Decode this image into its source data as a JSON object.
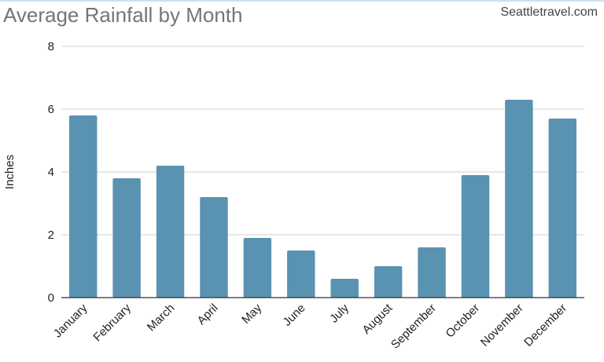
{
  "header": {
    "title": "Average Rainfall by Month",
    "source": "Seattletravel.com"
  },
  "colors": {
    "bar": "#5a93b2",
    "grid": "#d0d0d0",
    "baseline": "#333333",
    "title": "#757575"
  },
  "chart_data": {
    "type": "bar",
    "title": "Average Rainfall by Month",
    "xlabel": "",
    "ylabel": "Inches",
    "categories": [
      "January",
      "February",
      "March",
      "April",
      "May",
      "June",
      "July",
      "August",
      "September",
      "October",
      "November",
      "December"
    ],
    "values": [
      5.8,
      3.8,
      4.2,
      3.2,
      1.9,
      1.5,
      0.6,
      1.0,
      1.6,
      3.9,
      6.3,
      5.7
    ],
    "ylim": [
      0,
      8
    ],
    "yticks": [
      0,
      2,
      4,
      6,
      8
    ],
    "grid": true,
    "legend": "none"
  }
}
